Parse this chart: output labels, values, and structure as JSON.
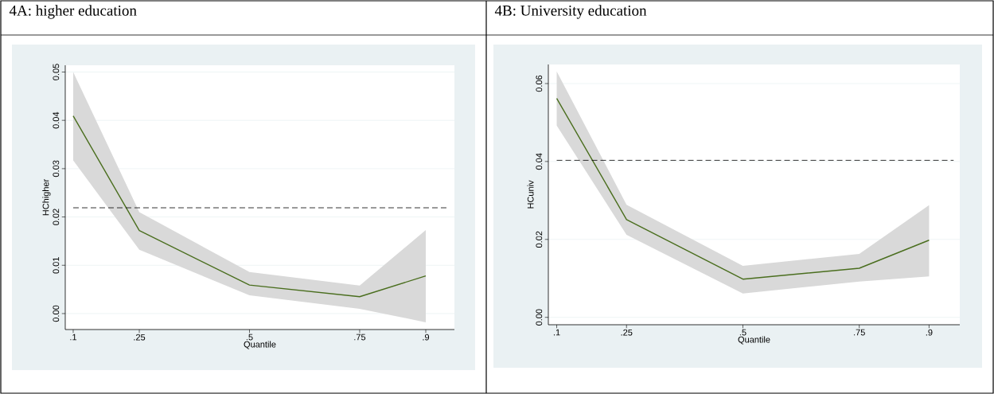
{
  "chart_data": [
    {
      "type": "line",
      "title": "4A: higher education",
      "xlabel": "Quantile",
      "ylabel": "HChigher",
      "x": [
        0.1,
        0.25,
        0.5,
        0.75,
        0.9
      ],
      "series": [
        {
          "color": "#4a6e1e",
          "values": [
            0.0409,
            0.0172,
            0.0059,
            0.0035,
            0.0078
          ],
          "lower": [
            0.0317,
            0.0132,
            0.0038,
            0.001,
            -0.0018
          ],
          "upper": [
            0.05,
            0.021,
            0.0086,
            0.0058,
            0.0173
          ]
        }
      ],
      "xlim": [
        0.082,
        0.965
      ],
      "ylim": [
        -0.0033,
        0.0514
      ],
      "xticks": [
        {
          "value": 0.1,
          "label": ".1"
        },
        {
          "value": 0.25,
          "label": ".25"
        },
        {
          "value": 0.5,
          "label": ".5"
        },
        {
          "value": 0.75,
          "label": ".75"
        },
        {
          "value": 0.9,
          "label": ".9"
        }
      ],
      "yticks": [
        {
          "value": 0,
          "label": "0.00"
        },
        {
          "value": 0.01,
          "label": "0.01"
        },
        {
          "value": 0.02,
          "label": "0.02"
        },
        {
          "value": 0.03,
          "label": "0.03"
        },
        {
          "value": 0.04,
          "label": "0.04"
        },
        {
          "value": 0.05,
          "label": "0.05"
        }
      ],
      "ref_lines": [
        {
          "axis": "y",
          "value": 0.0219,
          "color": "#000000",
          "line_style": "dashed"
        }
      ],
      "grid": "y"
    },
    {
      "type": "line",
      "title": "4B: University education",
      "xlabel": "Quantile",
      "ylabel": "HCuniv",
      "x": [
        0.1,
        0.25,
        0.5,
        0.75,
        0.9
      ],
      "series": [
        {
          "color": "#4a6e1e",
          "values": [
            0.0562,
            0.0251,
            0.0098,
            0.0126,
            0.0198
          ],
          "lower": [
            0.0492,
            0.0212,
            0.0061,
            0.0092,
            0.0105
          ],
          "upper": [
            0.0631,
            0.0289,
            0.0132,
            0.0163,
            0.0288
          ]
        }
      ],
      "xlim": [
        0.082,
        0.966
      ],
      "ylim": [
        -0.0019,
        0.0649
      ],
      "xticks": [
        {
          "value": 0.1,
          "label": ".1"
        },
        {
          "value": 0.25,
          "label": ".25"
        },
        {
          "value": 0.5,
          "label": ".5"
        },
        {
          "value": 0.75,
          "label": ".75"
        },
        {
          "value": 0.9,
          "label": ".9"
        }
      ],
      "yticks": [
        {
          "value": 0,
          "label": "0.00"
        },
        {
          "value": 0.02,
          "label": "0.02"
        },
        {
          "value": 0.04,
          "label": "0.04"
        },
        {
          "value": 0.06,
          "label": "0.06"
        }
      ],
      "ref_lines": [
        {
          "axis": "y",
          "value": 0.0403,
          "color": "#000000",
          "line_style": "dashed"
        }
      ],
      "grid": "y"
    }
  ]
}
